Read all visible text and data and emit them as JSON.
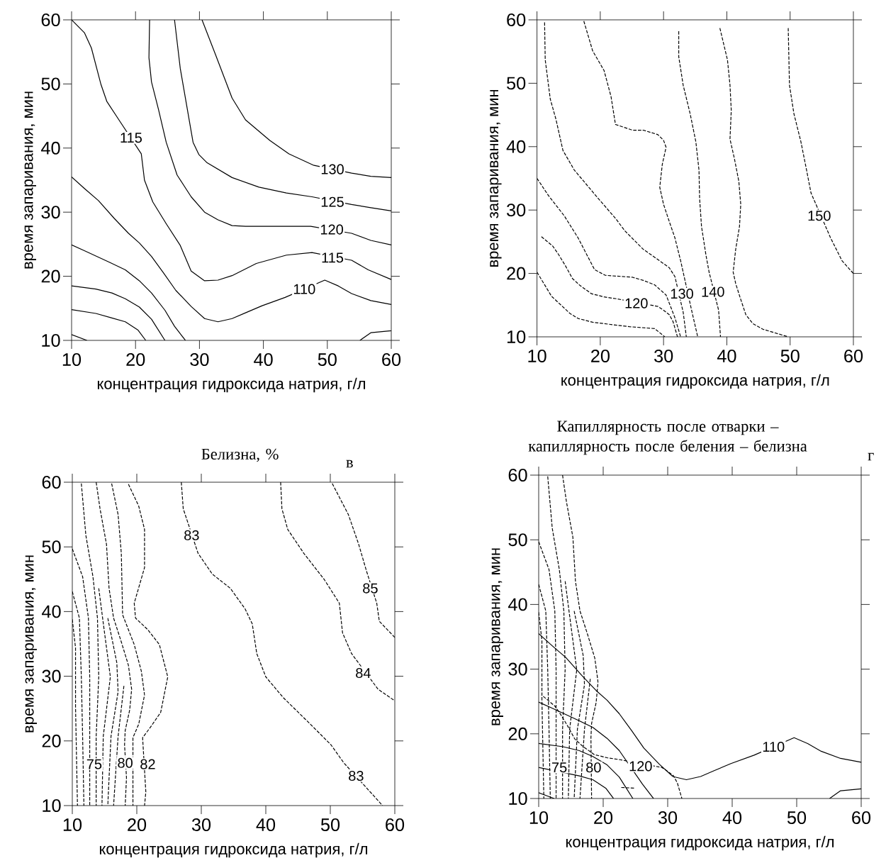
{
  "chart_data": [
    {
      "type": "line",
      "xlabel": "концентрация гидроксида натрия, г/л",
      "ylabel": "время запаривания, мин",
      "xlim": [
        10,
        60
      ],
      "ylim": [
        10,
        60
      ],
      "xticks": [
        10,
        20,
        30,
        40,
        50,
        60
      ],
      "yticks": [
        10,
        20,
        30,
        40,
        50,
        60
      ],
      "series": [
        {
          "color": "#000000",
          "line_style": "solid",
          "x": [
            10,
            12.0,
            13.1,
            14.6,
            15.5,
            17.4,
            20.9,
            21.4,
            22.7,
            24.8,
            27.0,
            28.7,
            30.8,
            32.9,
            35.1,
            38.9,
            43.6,
            47.6,
            53.8,
            56.4,
            60
          ],
          "values": [
            60,
            58.0,
            55.6,
            49.9,
            47.3,
            44.4,
            39.1,
            35.0,
            31.6,
            28.2,
            24.8,
            20.8,
            19.3,
            19.4,
            20.1,
            22.0,
            23.3,
            23.7,
            22.5,
            21.0,
            19.5
          ]
        },
        {
          "color": "#000000",
          "line_style": "solid",
          "x": [
            22.2,
            22.1,
            22.5,
            23.6,
            24.8,
            26.5,
            28.7,
            30.8,
            32.9,
            35.1,
            37.2,
            41.5,
            47.4,
            53.8,
            56.8,
            60
          ],
          "values": [
            60,
            54.1,
            50.3,
            46.0,
            40.9,
            35.8,
            32.4,
            30.0,
            28.8,
            27.9,
            27.8,
            27.8,
            27.8,
            26.7,
            25.6,
            24.9
          ]
        },
        {
          "color": "#000000",
          "line_style": "solid",
          "x": [
            26.1,
            27.0,
            29.0,
            29.9,
            31.2,
            35.1,
            39.3,
            43.6,
            47.6,
            53.8,
            56.8,
            60
          ],
          "values": [
            60,
            52.4,
            40.9,
            39.0,
            37.7,
            35.4,
            33.9,
            33.0,
            32.4,
            31.2,
            30.7,
            30.2
          ]
        },
        {
          "color": "#000000",
          "line_style": "solid",
          "x": [
            30.4,
            32.5,
            35.1,
            37.2,
            41.0,
            44.0,
            47.9,
            53.8,
            56.8,
            60
          ],
          "values": [
            60,
            54.6,
            47.8,
            44.4,
            41.2,
            39.1,
            37.3,
            36.1,
            35.6,
            35.4
          ]
        },
        {
          "color": "#000000",
          "line_style": "solid",
          "x": [
            10,
            12.0,
            14.2,
            16.7,
            18.9,
            20.6,
            22.5,
            24.4,
            26.3,
            28.7,
            30.8,
            32.9,
            35.1,
            37.2,
            39.8,
            43.4,
            49.6,
            51.7,
            53.8,
            56.8,
            60
          ],
          "values": [
            35.5,
            33.7,
            31.8,
            29.0,
            26.7,
            25.2,
            23.1,
            20.5,
            17.8,
            15.3,
            13.4,
            12.9,
            13.4,
            14.3,
            15.4,
            16.7,
            19.4,
            18.5,
            17.3,
            16.2,
            15.6
          ]
        },
        {
          "color": "#000000",
          "line_style": "solid",
          "x": [
            10,
            12.0,
            15.9,
            18.4,
            20.6,
            22.5,
            24.6,
            26.1,
            27.8
          ],
          "values": [
            24.9,
            24.0,
            22.2,
            21.0,
            19.3,
            17.4,
            14.7,
            12.2,
            10
          ]
        },
        {
          "color": "#000000",
          "line_style": "solid",
          "x": [
            10,
            13.8,
            16.3,
            18.4,
            20.6,
            22.5,
            24.6
          ],
          "values": [
            18.5,
            18.0,
            17.4,
            16.5,
            15.2,
            13.3,
            10
          ]
        },
        {
          "color": "#000000",
          "line_style": "solid",
          "x": [
            10,
            13.8,
            16.3,
            18.4,
            20.4,
            21.6
          ],
          "values": [
            14.8,
            14.2,
            13.5,
            12.9,
            11.6,
            10
          ]
        },
        {
          "color": "#000000",
          "line_style": "solid",
          "x": [
            10,
            12.4
          ],
          "values": [
            10.9,
            10
          ]
        },
        {
          "color": "#000000",
          "line_style": "solid",
          "x": [
            55.1,
            56.8,
            60
          ],
          "values": [
            10,
            11.2,
            11.5
          ]
        }
      ],
      "annotations": [
        {
          "text": "115",
          "x": 19.3,
          "y": 41.6
        },
        {
          "text": "130",
          "x": 50.8,
          "y": 36.7
        },
        {
          "text": "125",
          "x": 50.8,
          "y": 31.6
        },
        {
          "text": "120",
          "x": 50.7,
          "y": 27.3
        },
        {
          "text": "115",
          "x": 50.8,
          "y": 22.9
        },
        {
          "text": "110",
          "x": 46.4,
          "y": 18.0
        }
      ]
    },
    {
      "type": "line",
      "xlabel": "концентрация гидроксида натрия, г/л",
      "ylabel": "время запаривания, мин",
      "xlim": [
        10,
        60
      ],
      "ylim": [
        10,
        60
      ],
      "xticks": [
        10,
        20,
        30,
        40,
        50,
        60
      ],
      "yticks": [
        10,
        20,
        30,
        40,
        50,
        60
      ],
      "series": [
        {
          "color": "#000000",
          "line_style": "dashed",
          "x": [
            10.0,
            12.3,
            15.2,
            16.5,
            18.8,
            24.6,
            28.6,
            30.2
          ],
          "values": [
            20.2,
            16.4,
            13.7,
            12.9,
            12.3,
            11.6,
            11.3,
            10
          ]
        },
        {
          "color": "#000000",
          "line_style": "dashed",
          "x": [
            10.7,
            12.5,
            13.4,
            14.5,
            15.6,
            16.8,
            18.6,
            20.6,
            22.6,
            29.1,
            30.0,
            30.9,
            31.5,
            32.2
          ],
          "values": [
            25.8,
            24.3,
            23.0,
            21.2,
            19.2,
            18.1,
            16.8,
            16.3,
            16.0,
            14.8,
            14.2,
            13.5,
            12.4,
            10
          ]
        },
        {
          "color": "#000000",
          "line_style": "dashed",
          "x": [
            10,
            11.8,
            14.3,
            16.5,
            17.9,
            19.1,
            20.8,
            25.1,
            26.8,
            28.6,
            30.4,
            31.8,
            32.7
          ],
          "values": [
            35.0,
            32.3,
            29.1,
            25.6,
            22.9,
            20.6,
            19.7,
            19.4,
            18.9,
            18.2,
            16.6,
            13.0,
            10
          ]
        },
        {
          "color": "#000000",
          "line_style": "dashed",
          "x": [
            11.2,
            11.3,
            12.1,
            13.0,
            14.1,
            15.9,
            17.0,
            19.7,
            22.4,
            23.9,
            26.8,
            29.1,
            30.9,
            31.8,
            33.1,
            33.6
          ],
          "values": [
            59.6,
            53.7,
            47.5,
            44.3,
            39.4,
            36.3,
            35.0,
            31.8,
            28.7,
            26.7,
            23.8,
            22.2,
            20.9,
            19.5,
            13.9,
            10
          ]
        },
        {
          "color": "#000000",
          "line_style": "dashed",
          "x": [
            17.4,
            18.8,
            20.6,
            21.7,
            22.4,
            25.1,
            26.8,
            29.1,
            30.0,
            30.4,
            29.8,
            29.4,
            30.0,
            30.9,
            31.8,
            32.7,
            34.5,
            35.4
          ],
          "values": [
            59.8,
            55.1,
            52.0,
            47.9,
            43.5,
            42.6,
            42.6,
            41.9,
            41.0,
            39.9,
            37.2,
            33.6,
            30.9,
            28.2,
            25.6,
            22.0,
            13.9,
            10
          ]
        },
        {
          "color": "#000000",
          "line_style": "dashed",
          "x": [
            32.4,
            32.4,
            33.1,
            34.2,
            35.1,
            35.6,
            35.7,
            36.0,
            36.7,
            37.2,
            38.7,
            39.0
          ],
          "values": [
            58.2,
            54.2,
            49.7,
            45.2,
            40.8,
            36.3,
            31.8,
            27.4,
            22.9,
            20.2,
            14.2,
            10
          ]
        },
        {
          "color": "#000000",
          "line_style": "dashed",
          "x": [
            38.9,
            40.1,
            40.5,
            40.7,
            40.5,
            41.2,
            41.9,
            42.2,
            42.0,
            41.4,
            41.0,
            41.4,
            42.1,
            43.0,
            44.1,
            45.7,
            49.7
          ],
          "values": [
            58.7,
            53.7,
            49.7,
            45.7,
            41.2,
            38.1,
            34.5,
            30.9,
            27.4,
            23.8,
            20.2,
            18.4,
            16.2,
            13.5,
            12.1,
            11.2,
            10
          ]
        },
        {
          "color": "#000000",
          "line_style": "dashed",
          "x": [
            49.7,
            49.9,
            50.6,
            51.7,
            52.6,
            53.3,
            56.4,
            58.2,
            60
          ],
          "values": [
            58.7,
            49.7,
            45.2,
            40.8,
            36.3,
            32.7,
            25.6,
            22.0,
            20.0
          ]
        }
      ],
      "annotations": [
        {
          "text": "120",
          "x": 25.7,
          "y": 15.3
        },
        {
          "text": "130",
          "x": 32.9,
          "y": 16.8
        },
        {
          "text": "140",
          "x": 37.8,
          "y": 17.1
        },
        {
          "text": "150",
          "x": 54.6,
          "y": 29.1
        }
      ]
    },
    {
      "type": "line",
      "title": "Белизна, %",
      "xlabel": "концентрация гидроксида натрия, г/л",
      "ylabel": "время запаривания, мин",
      "xlim": [
        10,
        60
      ],
      "ylim": [
        10,
        60
      ],
      "xticks": [
        10,
        20,
        30,
        40,
        50,
        60
      ],
      "yticks": [
        10,
        20,
        30,
        40,
        50,
        60
      ],
      "series": [
        {
          "color": "#000000",
          "line_style": "dashed",
          "x": [
            26.9,
            27.2,
            29.5,
            31.7,
            34.5,
            36.8,
            37.9,
            38.6,
            40.0,
            42.7,
            46.9,
            50.1,
            52.1,
            56.2,
            58.1
          ],
          "values": [
            60,
            55.9,
            49.0,
            45.8,
            43.6,
            40.4,
            38.1,
            33.5,
            29.9,
            26.7,
            22.6,
            19.4,
            16.6,
            12.1,
            10
          ]
        },
        {
          "color": "#000000",
          "line_style": "dashed",
          "x": [
            42.3,
            42.5,
            43.4,
            45.9,
            49.1,
            51.4,
            51.9,
            53.3,
            57.4,
            60
          ],
          "values": [
            60,
            55.9,
            52.7,
            49.0,
            44.9,
            41.3,
            36.7,
            33.5,
            28.0,
            26.2
          ]
        },
        {
          "color": "#000000",
          "line_style": "dashed",
          "x": [
            50.3,
            52.8,
            54.4,
            55.6,
            57.2,
            57.6,
            60
          ],
          "values": [
            59.8,
            55.0,
            50.4,
            46.3,
            41.3,
            38.5,
            36.0
          ]
        },
        {
          "color": "#000000",
          "line_style": "dashed",
          "x": [
            18.7,
            20.3,
            21.2,
            21.2,
            19.6,
            19.8,
            21.7,
            23.5,
            24.8,
            23.7,
            22.1,
            20.9,
            21.4,
            21.2
          ],
          "values": [
            59.7,
            56.3,
            52.7,
            46.8,
            41.3,
            39.0,
            37.2,
            34.9,
            29.9,
            24.4,
            22.1,
            20.5,
            12.1,
            10
          ]
        },
        {
          "color": "#000000",
          "line_style": "dashed",
          "x": [
            16.1,
            17.1,
            17.6,
            17.8,
            19.6,
            20.7,
            21.2,
            20.3,
            19.4,
            19.4
          ],
          "values": [
            59.8,
            55.0,
            49.0,
            39.5,
            34.9,
            30.8,
            27.1,
            22.6,
            20.5,
            10
          ]
        },
        {
          "color": "#000000",
          "line_style": "dashed",
          "x": [
            13.7,
            14.3,
            15.3,
            15.7,
            16.4,
            17.6,
            18.7,
            19.2,
            18.9,
            18.2,
            18.1,
            18.4,
            18.2
          ],
          "values": [
            60,
            55.9,
            50.4,
            43.6,
            39.0,
            35.3,
            31.7,
            28.0,
            24.8,
            21.6,
            19.4,
            14.3,
            10
          ]
        },
        {
          "color": "#000000",
          "line_style": "dashed",
          "x": [
            10,
            10.5,
            10.5,
            10.8
          ],
          "values": [
            38.8,
            34.4,
            25.3,
            10
          ]
        },
        {
          "color": "#000000",
          "line_style": "dashed",
          "x": [
            10,
            11.1,
            11.4,
            11.6,
            11.8
          ],
          "values": [
            43.1,
            39.0,
            29.9,
            20.7,
            10
          ]
        },
        {
          "color": "#000000",
          "line_style": "dashed",
          "x": [
            10,
            11.6,
            12.5,
            12.7,
            12.7
          ],
          "values": [
            49.7,
            45.4,
            39.0,
            29.9,
            10
          ]
        },
        {
          "color": "#000000",
          "line_style": "dashed",
          "x": [
            11.4,
            12.1,
            13.2,
            13.9,
            14.1,
            13.7,
            13.7
          ],
          "values": [
            59.8,
            51.8,
            45.4,
            39.0,
            29.9,
            20.7,
            10
          ]
        },
        {
          "color": "#000000",
          "line_style": "dashed",
          "x": [
            14.1,
            15.0,
            15.9,
            14.8,
            14.6
          ],
          "values": [
            43.6,
            36.7,
            29.9,
            20.7,
            10
          ]
        },
        {
          "color": "#000000",
          "line_style": "dashed",
          "x": [
            15.5,
            16.9,
            17.1,
            16.0,
            15.5
          ],
          "values": [
            39.0,
            32.1,
            27.6,
            20.7,
            10
          ]
        },
        {
          "color": "#000000",
          "line_style": "dashed",
          "x": [
            18.0,
            17.1,
            16.4
          ],
          "values": [
            28.5,
            20.7,
            10
          ]
        }
      ],
      "annotations": [
        "в",
        {
          "text": "83",
          "x": 28.5,
          "y": 51.8
        },
        {
          "text": "85",
          "x": 56.2,
          "y": 43.6
        },
        {
          "text": "84",
          "x": 55.1,
          "y": 30.5
        },
        {
          "text": "83",
          "x": 54.0,
          "y": 14.6
        },
        {
          "text": "75",
          "x": 13.4,
          "y": 16.4
        },
        {
          "text": "80",
          "x": 18.2,
          "y": 16.6
        },
        {
          "text": "82",
          "x": 21.7,
          "y": 16.4
        }
      ]
    },
    {
      "type": "line",
      "title": "Капиллярность после отварки – капиллярность после беления – белизна",
      "xlabel": "концентрация гидроксида натрия, г/л",
      "ylabel": "время запаривания, мин",
      "xlim": [
        10,
        60
      ],
      "ylim": [
        10,
        60
      ],
      "xticks": [
        10,
        20,
        30,
        40,
        50,
        60
      ],
      "yticks": [
        10,
        20,
        30,
        40,
        50,
        60
      ],
      "series": [
        {
          "color": "#000000",
          "line_style": "solid",
          "x": [
            10,
            12.0,
            14.2,
            16.7,
            18.9,
            20.6,
            22.5,
            24.4,
            26.3,
            28.7,
            30.8,
            32.9,
            35.1,
            37.2,
            39.8,
            43.4,
            49.6,
            51.7,
            53.8,
            56.8,
            60
          ],
          "values": [
            35.5,
            33.7,
            31.8,
            29.0,
            26.7,
            25.2,
            23.1,
            20.5,
            17.8,
            15.3,
            13.4,
            12.9,
            13.4,
            14.3,
            15.4,
            16.7,
            19.4,
            18.5,
            17.3,
            16.2,
            15.6
          ]
        },
        {
          "color": "#000000",
          "line_style": "dashed",
          "x": [
            10.7,
            12.5,
            13.4,
            14.5,
            15.6,
            16.8,
            18.6,
            20.6,
            22.6,
            29.1,
            30.0,
            30.9,
            31.5,
            32.2
          ],
          "values": [
            25.8,
            24.3,
            23.0,
            21.2,
            19.2,
            18.1,
            16.8,
            16.3,
            16.0,
            14.8,
            14.2,
            13.5,
            12.4,
            10
          ]
        },
        {
          "color": "#000000",
          "line_style": "dashed",
          "x": [
            13.7,
            14.3,
            15.3,
            15.7,
            16.4,
            17.6,
            18.7,
            19.2,
            18.9,
            18.2,
            18.1,
            18.2
          ],
          "values": [
            60,
            55.9,
            50.4,
            43.6,
            39.0,
            35.3,
            31.7,
            28.0,
            24.8,
            21.6,
            19.4,
            10
          ]
        },
        {
          "color": "#000000",
          "line_style": "dashed",
          "x": [
            10,
            10.5,
            10.5,
            10.8
          ],
          "values": [
            38.8,
            34.4,
            25.3,
            10
          ]
        },
        {
          "color": "#000000",
          "line_style": "dashed",
          "x": [
            10,
            11.1,
            11.4,
            11.6,
            11.8
          ],
          "values": [
            43.1,
            39.0,
            29.9,
            20.7,
            10
          ]
        },
        {
          "color": "#000000",
          "line_style": "dashed",
          "x": [
            10,
            11.6,
            12.5,
            12.7,
            12.7
          ],
          "values": [
            49.7,
            45.4,
            39.0,
            29.9,
            10
          ]
        },
        {
          "color": "#000000",
          "line_style": "dashed",
          "x": [
            11.4,
            12.1,
            13.2,
            13.9,
            14.1,
            13.7,
            13.7
          ],
          "values": [
            59.8,
            51.8,
            45.4,
            39.0,
            29.9,
            20.7,
            10
          ]
        },
        {
          "color": "#000000",
          "line_style": "dashed",
          "x": [
            14.1,
            15.0,
            15.9,
            14.8,
            14.6
          ],
          "values": [
            43.6,
            36.7,
            29.9,
            20.7,
            10
          ]
        },
        {
          "color": "#000000",
          "line_style": "dashed",
          "x": [
            15.5,
            16.9,
            17.1,
            16.0,
            15.5
          ],
          "values": [
            39.0,
            32.1,
            27.6,
            20.7,
            10
          ]
        },
        {
          "color": "#000000",
          "line_style": "dashed",
          "x": [
            18.0,
            17.1,
            16.4
          ],
          "values": [
            28.5,
            20.7,
            10
          ]
        },
        {
          "color": "#000000",
          "line_style": "solid",
          "x": [
            10,
            12.0,
            15.9,
            18.4,
            20.6,
            22.5,
            26.1,
            27.8
          ],
          "values": [
            24.9,
            24.0,
            22.2,
            21.0,
            19.3,
            17.4,
            12.2,
            10
          ]
        },
        {
          "color": "#000000",
          "line_style": "solid",
          "x": [
            10,
            13.8,
            16.3,
            18.4,
            20.6,
            22.5,
            24.6
          ],
          "values": [
            18.5,
            18.0,
            17.4,
            16.5,
            15.2,
            13.3,
            10
          ]
        },
        {
          "color": "#000000",
          "line_style": "solid",
          "x": [
            10,
            16.3,
            18.4,
            20.4,
            21.6
          ],
          "values": [
            14.8,
            13.5,
            12.9,
            11.6,
            10
          ]
        },
        {
          "color": "#000000",
          "line_style": "solid",
          "x": [
            10,
            12.4
          ],
          "values": [
            10.9,
            10
          ]
        },
        {
          "color": "#000000",
          "line_style": "solid",
          "x": [
            55.1,
            56.8,
            60
          ],
          "values": [
            10,
            11.2,
            11.5
          ]
        },
        {
          "color": "#000000",
          "line_style": "dashed",
          "x": [
            22.8,
            24.9
          ],
          "values": [
            11.7,
            11.6
          ]
        }
      ],
      "annotations": [
        "г",
        {
          "text": "110",
          "x": 46.4,
          "y": 18.0
        },
        {
          "text": "120",
          "x": 25.8,
          "y": 15.0
        },
        {
          "text": "80",
          "x": 18.5,
          "y": 14.8
        },
        {
          "text": "75",
          "x": 13.2,
          "y": 14.8
        }
      ]
    }
  ]
}
